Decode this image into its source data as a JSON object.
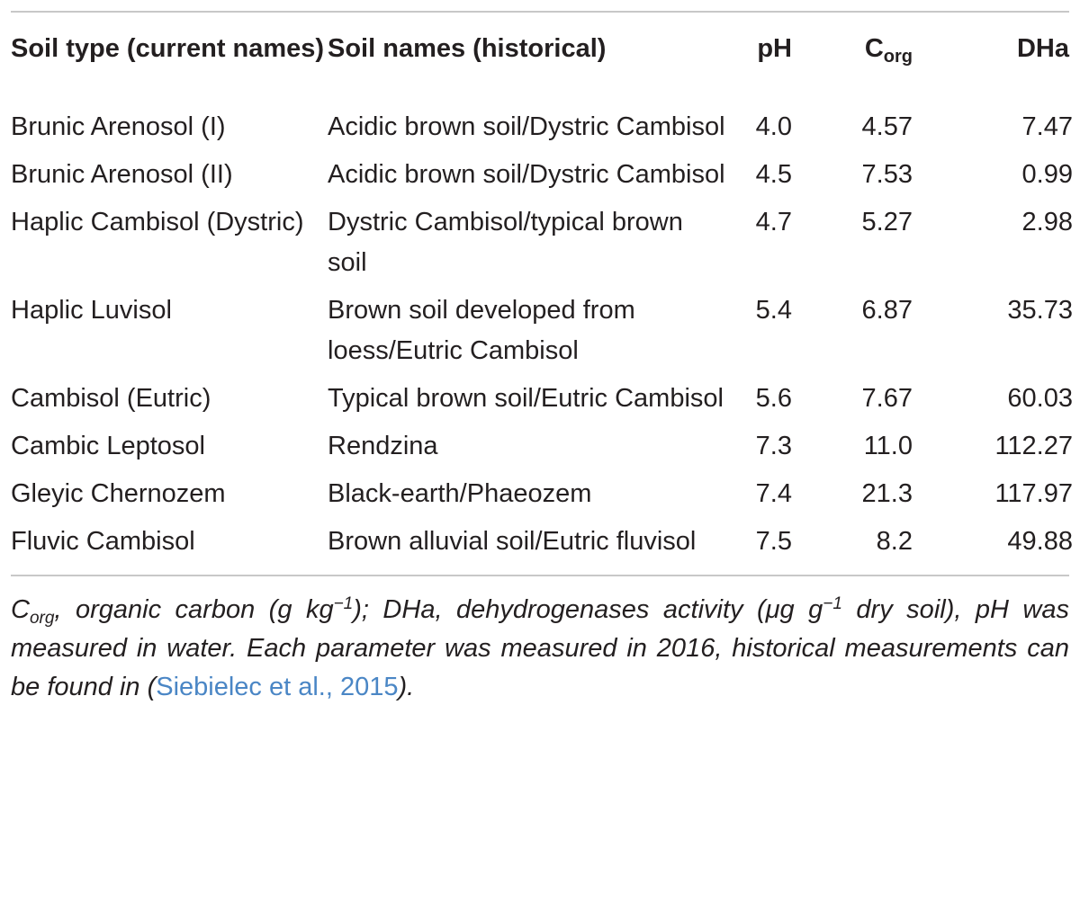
{
  "table": {
    "headers": {
      "soil_type": "Soil type (current names)",
      "soil_names": "Soil names (historical)",
      "ph": "pH",
      "corg_main": "C",
      "corg_sub": "org",
      "dha": "DHa"
    },
    "rows": [
      {
        "soil_type": "Brunic Arenosol (I)",
        "soil_names": "Acidic brown soil/Dystric Cambisol",
        "ph": "4.0",
        "corg": "4.57",
        "dha": "7.47"
      },
      {
        "soil_type": "Brunic Arenosol (II)",
        "soil_names": "Acidic brown soil/Dystric Cambisol",
        "ph": "4.5",
        "corg": "7.53",
        "dha": "0.99"
      },
      {
        "soil_type": "Haplic Cambisol (Dystric)",
        "soil_names": "Dystric Cambisol/typical brown soil",
        "ph": "4.7",
        "corg": "5.27",
        "dha": "2.98"
      },
      {
        "soil_type": "Haplic Luvisol",
        "soil_names": "Brown soil developed from loess/Eutric Cambisol",
        "ph": "5.4",
        "corg": "6.87",
        "dha": "35.73"
      },
      {
        "soil_type": "Cambisol (Eutric)",
        "soil_names": "Typical brown soil/Eutric Cambisol",
        "ph": "5.6",
        "corg": "7.67",
        "dha": "60.03"
      },
      {
        "soil_type": "Cambic Leptosol",
        "soil_names": "Rendzina",
        "ph": "7.3",
        "corg": "11.0",
        "dha": "112.27"
      },
      {
        "soil_type": "Gleyic Chernozem",
        "soil_names": "Black-earth/Phaeozem",
        "ph": "7.4",
        "corg": "21.3",
        "dha": "117.97"
      },
      {
        "soil_type": "Fluvic Cambisol",
        "soil_names": "Brown alluvial soil/Eutric fluvisol",
        "ph": "7.5",
        "corg": "8.2",
        "dha": "49.88"
      }
    ]
  },
  "footnote": {
    "c": "C",
    "org": "org",
    "part1": ", organic carbon (g kg",
    "exp1": "−1",
    "part2": "); DHa, dehydrogenases activity (μg g",
    "exp2": "−1",
    "part3": " dry soil), pH was measured in water. Each parameter was measured in 2016, historical measurements can be found in (",
    "link": "Siebielec et al., 2015",
    "part4": ")."
  },
  "colors": {
    "link": "#4a86c5",
    "rule": "#c8c8c8",
    "text": "#231f20"
  }
}
